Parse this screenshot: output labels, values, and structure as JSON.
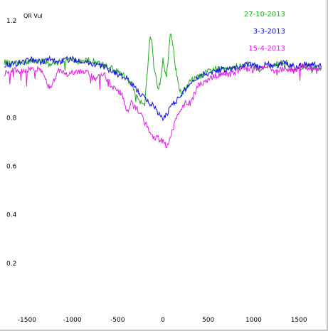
{
  "chart_data": {
    "type": "line",
    "title": "QR Vul",
    "xlabel": "",
    "ylabel": "",
    "xlim": [
      -1750,
      1750
    ],
    "ylim": [
      0,
      1.25
    ],
    "xticks": [
      -1500,
      -1000,
      -500,
      0,
      500,
      1000,
      1500
    ],
    "yticks": [
      0.2,
      0.4,
      0.6,
      0.8,
      1.0,
      1.2
    ],
    "ytick_labels": [
      "0.2",
      "0.4",
      "0.6",
      "0.8",
      "",
      "1.2"
    ],
    "grid": false,
    "legend_position": "top-right",
    "series": [
      {
        "name": "27-10-2013",
        "color": "#22a822",
        "x": [
          -1750,
          -1650,
          -1550,
          -1450,
          -1350,
          -1250,
          -1150,
          -1050,
          -950,
          -850,
          -750,
          -650,
          -550,
          -450,
          -400,
          -350,
          -300,
          -250,
          -200,
          -180,
          -160,
          -140,
          -120,
          -100,
          -80,
          -60,
          -40,
          -20,
          0,
          20,
          40,
          60,
          80,
          100,
          120,
          140,
          160,
          180,
          200,
          250,
          300,
          350,
          400,
          450,
          550,
          650,
          750,
          850,
          950,
          1050,
          1150,
          1250,
          1350,
          1450,
          1550,
          1650,
          1750
        ],
        "y": [
          1.03,
          1.02,
          1.03,
          1.03,
          1.04,
          1.02,
          1.03,
          1.04,
          1.03,
          1.04,
          1.03,
          1.02,
          1.0,
          0.98,
          0.96,
          0.94,
          0.9,
          0.87,
          0.86,
          0.95,
          1.05,
          1.13,
          1.1,
          1.0,
          0.97,
          0.93,
          0.93,
          0.98,
          1.05,
          1.0,
          0.98,
          1.05,
          1.14,
          1.12,
          1.08,
          1.0,
          0.97,
          0.92,
          0.9,
          0.92,
          0.95,
          0.96,
          0.97,
          0.98,
          1.0,
          1.0,
          1.01,
          1.01,
          1.02,
          1.0,
          1.01,
          1.02,
          1.03,
          1.0,
          1.01,
          1.01,
          1.0
        ]
      },
      {
        "name": "3-3-2013",
        "color": "#1010dd",
        "x": [
          -1750,
          -1650,
          -1550,
          -1450,
          -1350,
          -1250,
          -1150,
          -1050,
          -950,
          -850,
          -750,
          -650,
          -550,
          -450,
          -400,
          -350,
          -300,
          -250,
          -200,
          -150,
          -100,
          -50,
          0,
          50,
          100,
          150,
          200,
          250,
          300,
          350,
          400,
          450,
          550,
          650,
          750,
          850,
          950,
          1050,
          1150,
          1250,
          1350,
          1450,
          1550,
          1650,
          1750
        ],
        "y": [
          1.02,
          1.02,
          1.03,
          1.04,
          1.03,
          1.04,
          1.03,
          1.04,
          1.04,
          1.03,
          1.02,
          1.01,
          0.99,
          0.97,
          0.96,
          0.94,
          0.92,
          0.9,
          0.88,
          0.86,
          0.85,
          0.82,
          0.79,
          0.82,
          0.86,
          0.87,
          0.89,
          0.92,
          0.94,
          0.96,
          0.97,
          0.98,
          0.99,
          1.0,
          1.0,
          1.01,
          1.02,
          1.01,
          1.02,
          1.01,
          1.03,
          1.01,
          1.02,
          1.02,
          1.01
        ]
      },
      {
        "name": "15-4-2013",
        "color": "#e020e0",
        "x": [
          -1750,
          -1650,
          -1550,
          -1450,
          -1350,
          -1250,
          -1150,
          -1050,
          -950,
          -850,
          -750,
          -650,
          -550,
          -450,
          -400,
          -350,
          -300,
          -250,
          -200,
          -150,
          -100,
          -50,
          0,
          50,
          100,
          150,
          200,
          250,
          300,
          350,
          400,
          450,
          550,
          650,
          750,
          850,
          950,
          1050,
          1150,
          1250,
          1350,
          1450,
          1550,
          1650,
          1750
        ],
        "y": [
          0.98,
          1.0,
          0.99,
          1.0,
          1.0,
          0.92,
          0.99,
          0.98,
          0.99,
          0.99,
          0.96,
          0.98,
          0.92,
          0.9,
          0.82,
          0.86,
          0.84,
          0.82,
          0.78,
          0.75,
          0.72,
          0.72,
          0.7,
          0.68,
          0.74,
          0.8,
          0.84,
          0.86,
          0.86,
          0.9,
          0.94,
          0.94,
          0.97,
          0.98,
          0.98,
          1.0,
          1.0,
          1.0,
          1.01,
          1.0,
          1.0,
          1.0,
          1.01,
          1.0,
          1.0
        ]
      }
    ]
  }
}
